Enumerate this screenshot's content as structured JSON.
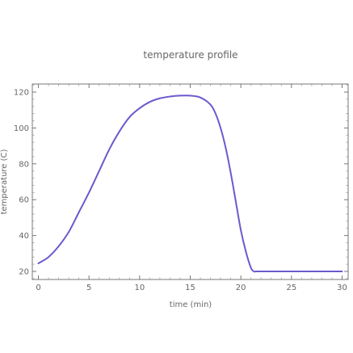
{
  "chart_data": {
    "type": "line",
    "title": "temperature profile",
    "xlabel": "time (min)",
    "ylabel": "temperature (C)",
    "xlim": [
      -0.6,
      30.6
    ],
    "ylim": [
      15.5,
      124.5
    ],
    "x_ticks": [
      0,
      5,
      10,
      15,
      20,
      25,
      30
    ],
    "y_ticks": [
      20,
      40,
      60,
      80,
      100,
      120
    ],
    "grid": false,
    "line_color": "#6a5acd",
    "series": [
      {
        "x": [
          0,
          1,
          2,
          3,
          4,
          5,
          6,
          7,
          8,
          9,
          10,
          11,
          12,
          13,
          14,
          15,
          16,
          17,
          17.5,
          18,
          18.5,
          19,
          19.5,
          20,
          20.5,
          21,
          21.3,
          21.5,
          22,
          23,
          24,
          25,
          26,
          27,
          28,
          29,
          30
        ],
        "y": [
          24.5,
          28,
          34,
          42,
          53,
          64,
          76,
          88,
          98,
          106,
          111,
          114.5,
          116.5,
          117.5,
          118,
          118,
          117,
          113,
          108,
          100,
          89,
          75,
          59,
          43,
          31,
          22,
          20,
          20,
          20,
          20,
          20,
          20,
          20,
          20,
          20,
          20,
          20
        ]
      }
    ]
  }
}
